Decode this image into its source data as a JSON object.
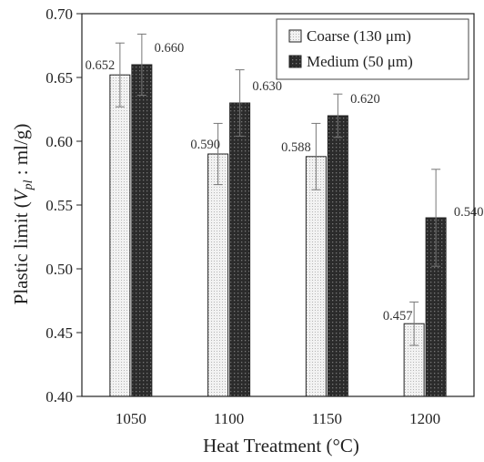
{
  "chart_data": {
    "type": "bar",
    "categories": [
      "1050",
      "1100",
      "1150",
      "1200"
    ],
    "series": [
      {
        "name": "Coarse (130 μm)",
        "values": [
          0.652,
          0.59,
          0.588,
          0.457
        ],
        "errors": [
          0.025,
          0.024,
          0.026,
          0.017
        ],
        "labels": [
          "0.652",
          "0.590",
          "0.588",
          "0.457"
        ],
        "fill": "#f2f2f2",
        "dot": "#b5b5b5",
        "pattern": "light-dotted"
      },
      {
        "name": "Medium (50 μm)",
        "values": [
          0.66,
          0.63,
          0.62,
          0.54
        ],
        "errors": [
          0.024,
          0.026,
          0.017,
          0.038
        ],
        "labels": [
          "0.660",
          "0.630",
          "0.620",
          "0.540"
        ],
        "fill": "#2b2b2b",
        "dot": "#777777",
        "pattern": "dark-dotted"
      }
    ],
    "xlabel": "Heat Treatment (°C)",
    "ylabel_main": "Plastic limit (",
    "ylabel_symbol": "V",
    "ylabel_subscript": "pl",
    "ylabel_rest": " : ml/g)",
    "ylim": [
      0.4,
      0.7
    ],
    "yticks": [
      "0.40",
      "0.45",
      "0.50",
      "0.55",
      "0.60",
      "0.65",
      "0.70"
    ],
    "grid": false,
    "legend_position": "top-right"
  }
}
